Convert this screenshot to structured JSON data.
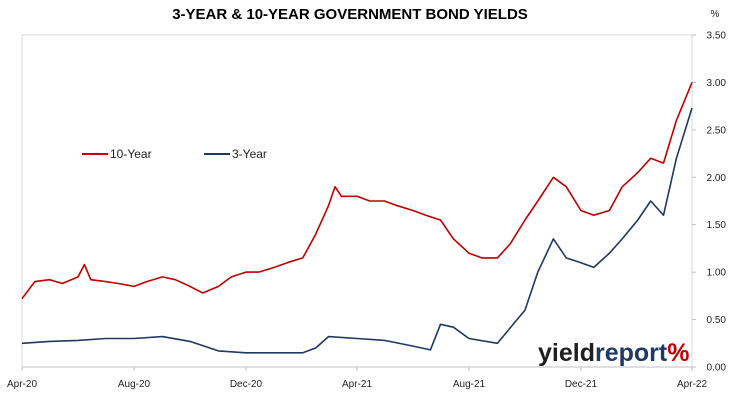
{
  "chart_data": {
    "type": "line",
    "title": "3-YEAR & 10-YEAR GOVERNMENT BOND YIELDS",
    "y_unit_label": "%",
    "ylim": [
      0,
      3.5
    ],
    "y_ticks": [
      "0.00",
      "0.50",
      "1.00",
      "1.50",
      "2.00",
      "2.50",
      "3.00",
      "3.50"
    ],
    "x_range": [
      "2020-04",
      "2022-04"
    ],
    "x_ticks": [
      {
        "date": "2020-04",
        "label": "Apr-20"
      },
      {
        "date": "2020-08",
        "label": "Aug-20"
      },
      {
        "date": "2020-12",
        "label": "Dec-20"
      },
      {
        "date": "2021-04",
        "label": "Apr-21"
      },
      {
        "date": "2021-08",
        "label": "Aug-21"
      },
      {
        "date": "2021-12",
        "label": "Dec-21"
      },
      {
        "date": "2022-04",
        "label": "Apr-22"
      }
    ],
    "grid": false,
    "legend_position": "upper-left",
    "series": [
      {
        "name": "10-Year",
        "color": "#c00000",
        "points": [
          [
            "2020-04-01",
            0.72
          ],
          [
            "2020-04-15",
            0.9
          ],
          [
            "2020-05-01",
            0.92
          ],
          [
            "2020-05-15",
            0.88
          ],
          [
            "2020-06-01",
            0.95
          ],
          [
            "2020-06-08",
            1.08
          ],
          [
            "2020-06-15",
            0.92
          ],
          [
            "2020-07-01",
            0.9
          ],
          [
            "2020-07-15",
            0.88
          ],
          [
            "2020-08-01",
            0.85
          ],
          [
            "2020-08-15",
            0.9
          ],
          [
            "2020-09-01",
            0.95
          ],
          [
            "2020-09-15",
            0.92
          ],
          [
            "2020-10-01",
            0.85
          ],
          [
            "2020-10-15",
            0.78
          ],
          [
            "2020-11-01",
            0.85
          ],
          [
            "2020-11-15",
            0.95
          ],
          [
            "2020-12-01",
            1.0
          ],
          [
            "2020-12-15",
            1.0
          ],
          [
            "2021-01-01",
            1.05
          ],
          [
            "2021-01-15",
            1.1
          ],
          [
            "2021-02-01",
            1.15
          ],
          [
            "2021-02-15",
            1.4
          ],
          [
            "2021-03-01",
            1.7
          ],
          [
            "2021-03-08",
            1.9
          ],
          [
            "2021-03-15",
            1.8
          ],
          [
            "2021-04-01",
            1.8
          ],
          [
            "2021-04-15",
            1.75
          ],
          [
            "2021-05-01",
            1.75
          ],
          [
            "2021-05-15",
            1.7
          ],
          [
            "2021-06-01",
            1.65
          ],
          [
            "2021-06-15",
            1.6
          ],
          [
            "2021-07-01",
            1.55
          ],
          [
            "2021-07-15",
            1.35
          ],
          [
            "2021-08-01",
            1.2
          ],
          [
            "2021-08-15",
            1.15
          ],
          [
            "2021-09-01",
            1.15
          ],
          [
            "2021-09-15",
            1.3
          ],
          [
            "2021-10-01",
            1.55
          ],
          [
            "2021-10-15",
            1.75
          ],
          [
            "2021-11-01",
            2.0
          ],
          [
            "2021-11-15",
            1.9
          ],
          [
            "2021-12-01",
            1.65
          ],
          [
            "2021-12-15",
            1.6
          ],
          [
            "2022-01-01",
            1.65
          ],
          [
            "2022-01-15",
            1.9
          ],
          [
            "2022-02-01",
            2.05
          ],
          [
            "2022-02-15",
            2.2
          ],
          [
            "2022-03-01",
            2.15
          ],
          [
            "2022-03-15",
            2.6
          ],
          [
            "2022-04-01",
            3.0
          ]
        ]
      },
      {
        "name": "3-Year",
        "color": "#1f3864",
        "points": [
          [
            "2020-04-01",
            0.25
          ],
          [
            "2020-05-01",
            0.27
          ],
          [
            "2020-06-01",
            0.28
          ],
          [
            "2020-07-01",
            0.3
          ],
          [
            "2020-08-01",
            0.3
          ],
          [
            "2020-09-01",
            0.32
          ],
          [
            "2020-10-01",
            0.27
          ],
          [
            "2020-11-01",
            0.17
          ],
          [
            "2020-12-01",
            0.15
          ],
          [
            "2021-01-01",
            0.15
          ],
          [
            "2021-02-01",
            0.15
          ],
          [
            "2021-02-15",
            0.2
          ],
          [
            "2021-03-01",
            0.32
          ],
          [
            "2021-04-01",
            0.3
          ],
          [
            "2021-05-01",
            0.28
          ],
          [
            "2021-06-01",
            0.22
          ],
          [
            "2021-06-20",
            0.18
          ],
          [
            "2021-07-01",
            0.45
          ],
          [
            "2021-07-15",
            0.42
          ],
          [
            "2021-08-01",
            0.3
          ],
          [
            "2021-09-01",
            0.25
          ],
          [
            "2021-10-01",
            0.6
          ],
          [
            "2021-10-15",
            1.0
          ],
          [
            "2021-11-01",
            1.35
          ],
          [
            "2021-11-15",
            1.15
          ],
          [
            "2021-12-01",
            1.1
          ],
          [
            "2021-12-15",
            1.05
          ],
          [
            "2022-01-01",
            1.2
          ],
          [
            "2022-01-15",
            1.35
          ],
          [
            "2022-02-01",
            1.55
          ],
          [
            "2022-02-15",
            1.75
          ],
          [
            "2022-03-01",
            1.6
          ],
          [
            "2022-03-15",
            2.2
          ],
          [
            "2022-04-01",
            2.73
          ]
        ]
      }
    ]
  },
  "logo": {
    "part1": "yield",
    "part2": "report",
    "part3": "%"
  }
}
